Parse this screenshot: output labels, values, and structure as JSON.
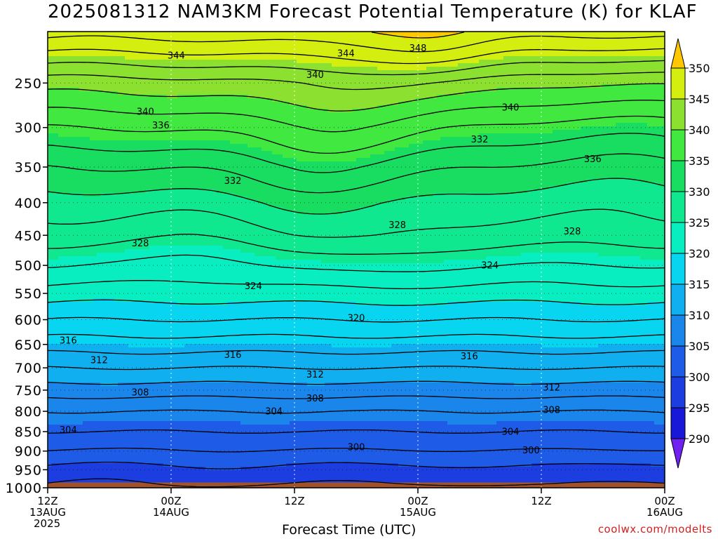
{
  "title": "2025081312 NAM3KM Forecast Potential Temperature (K) for KLAF",
  "credit": "coolwx.com/modelts",
  "colors": {
    "bands": [
      "#7020f0",
      "#1818d8",
      "#1c3ee0",
      "#1e5ce8",
      "#1a86ec",
      "#10b0f0",
      "#08d6f0",
      "#08eec0",
      "#10e890",
      "#18dd60",
      "#40e840",
      "#8ce030",
      "#d4ee10",
      "#ffff00",
      "#ffc800"
    ],
    "ground": "#a0522d"
  },
  "chart_data": {
    "type": "contour",
    "title": "2025081312 NAM3KM Forecast Potential Temperature (K) for KLAF",
    "xlabel": "Forecast Time (UTC)",
    "ylabel": "",
    "x_ticks": [
      {
        "hour": 0,
        "lines": [
          "12Z",
          "13AUG",
          "2025"
        ]
      },
      {
        "hour": 12,
        "lines": [
          "00Z",
          "14AUG"
        ]
      },
      {
        "hour": 24,
        "lines": [
          "12Z"
        ]
      },
      {
        "hour": 36,
        "lines": [
          "00Z",
          "15AUG"
        ]
      },
      {
        "hour": 48,
        "lines": [
          "12Z"
        ]
      },
      {
        "hour": 60,
        "lines": [
          "00Z",
          "16AUG"
        ]
      }
    ],
    "xlim": [
      0,
      60
    ],
    "y_ticks": [
      250,
      300,
      350,
      400,
      450,
      500,
      550,
      600,
      650,
      700,
      750,
      800,
      850,
      900,
      950,
      1000
    ],
    "ylim": [
      200,
      1000
    ],
    "colorbar": {
      "levels": [
        290,
        295,
        300,
        305,
        310,
        315,
        320,
        325,
        330,
        335,
        340,
        345,
        350
      ],
      "label_values": [
        "290",
        "295",
        "300",
        "305",
        "310",
        "315",
        "320",
        "325",
        "330",
        "335",
        "340",
        "345",
        "350"
      ]
    },
    "profile": {
      "pressure": [
        1000,
        950,
        900,
        850,
        800,
        750,
        700,
        650,
        600,
        550,
        500,
        450,
        400,
        350,
        300,
        250,
        200
      ],
      "theta": [
        298,
        300,
        302,
        304,
        306,
        309,
        312,
        315,
        318,
        321,
        324,
        327,
        329,
        332,
        336,
        341,
        349
      ]
    },
    "contour_labels": [
      {
        "value": "344",
        "hour": 12.5,
        "p": 222
      },
      {
        "value": "344",
        "hour": 29,
        "p": 220
      },
      {
        "value": "348",
        "hour": 36,
        "p": 215
      },
      {
        "value": "340",
        "hour": 26,
        "p": 241
      },
      {
        "value": "340",
        "hour": 9.5,
        "p": 281
      },
      {
        "value": "340",
        "hour": 45,
        "p": 276
      },
      {
        "value": "336",
        "hour": 11,
        "p": 297
      },
      {
        "value": "336",
        "hour": 53,
        "p": 339
      },
      {
        "value": "332",
        "hour": 18,
        "p": 368
      },
      {
        "value": "332",
        "hour": 42,
        "p": 314
      },
      {
        "value": "328",
        "hour": 9,
        "p": 462
      },
      {
        "value": "328",
        "hour": 34,
        "p": 433
      },
      {
        "value": "328",
        "hour": 51,
        "p": 443
      },
      {
        "value": "324",
        "hour": 20,
        "p": 536
      },
      {
        "value": "324",
        "hour": 43,
        "p": 499
      },
      {
        "value": "320",
        "hour": 30,
        "p": 596
      },
      {
        "value": "316",
        "hour": 2,
        "p": 641
      },
      {
        "value": "316",
        "hour": 18,
        "p": 671
      },
      {
        "value": "316",
        "hour": 41,
        "p": 674
      },
      {
        "value": "312",
        "hour": 5,
        "p": 682
      },
      {
        "value": "312",
        "hour": 26,
        "p": 714
      },
      {
        "value": "312",
        "hour": 49,
        "p": 743
      },
      {
        "value": "308",
        "hour": 9,
        "p": 754
      },
      {
        "value": "308",
        "hour": 26,
        "p": 768
      },
      {
        "value": "308",
        "hour": 49,
        "p": 796
      },
      {
        "value": "304",
        "hour": 2,
        "p": 845
      },
      {
        "value": "304",
        "hour": 22,
        "p": 799
      },
      {
        "value": "304",
        "hour": 45,
        "p": 849
      },
      {
        "value": "300",
        "hour": 30,
        "p": 889
      },
      {
        "value": "300",
        "hour": 47,
        "p": 897
      }
    ]
  }
}
